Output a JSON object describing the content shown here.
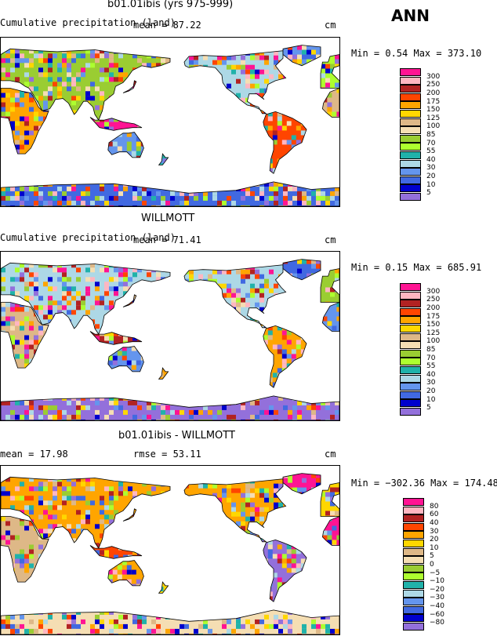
{
  "season": "ANN",
  "panels": [
    {
      "title": "b01.01ibis (yrs 975-999)",
      "left_label": "Cumulative precipitation (land)",
      "mean_label": "mean =  87.22",
      "rmse_label": "",
      "units": "cm",
      "minmax": "Min =    0.54 Max = 373.10",
      "legend": {
        "labels": [
          "300",
          "250",
          "200",
          "175",
          "150",
          "125",
          "100",
          "85",
          "70",
          "55",
          "40",
          "30",
          "20",
          "10",
          "5"
        ],
        "colors": [
          "#ff1493",
          "#ffb6c1",
          "#b22222",
          "#ff4500",
          "#ffa500",
          "#ffd700",
          "#deb887",
          "#f5deb3",
          "#9acd32",
          "#adff2f",
          "#20b2aa",
          "#add8e6",
          "#6495ed",
          "#4169e1",
          "#0000cd",
          "#9370db"
        ]
      }
    },
    {
      "title": "WILLMOTT",
      "left_label": "Cumulative precipitation (land)",
      "mean_label": "mean =  71.41",
      "rmse_label": "",
      "units": "cm",
      "minmax": "Min =    0.15 Max = 685.91",
      "legend": {
        "labels": [
          "300",
          "250",
          "200",
          "175",
          "150",
          "125",
          "100",
          "85",
          "70",
          "55",
          "40",
          "30",
          "20",
          "10",
          "5"
        ],
        "colors": [
          "#ff1493",
          "#ffb6c1",
          "#b22222",
          "#ff4500",
          "#ffa500",
          "#ffd700",
          "#deb887",
          "#f5deb3",
          "#9acd32",
          "#adff2f",
          "#20b2aa",
          "#add8e6",
          "#6495ed",
          "#4169e1",
          "#0000cd",
          "#9370db"
        ]
      }
    },
    {
      "title": "b01.01ibis - WILLMOTT",
      "left_label": "",
      "mean_label": "mean =  17.98",
      "rmse_label": "rmse =  53.11",
      "units": "cm",
      "minmax": "Min = −302.36 Max = 174.48",
      "legend": {
        "labels": [
          "80",
          "60",
          "40",
          "30",
          "20",
          "10",
          "5",
          "0",
          "−5",
          "−10",
          "−20",
          "−30",
          "−40",
          "−60",
          "−80"
        ],
        "colors": [
          "#ff1493",
          "#ffb6c1",
          "#b22222",
          "#ff4500",
          "#ffa500",
          "#ffd700",
          "#deb887",
          "#f5deb3",
          "#9acd32",
          "#adff2f",
          "#20b2aa",
          "#add8e6",
          "#6495ed",
          "#4169e1",
          "#0000cd",
          "#9370db"
        ]
      }
    }
  ]
}
